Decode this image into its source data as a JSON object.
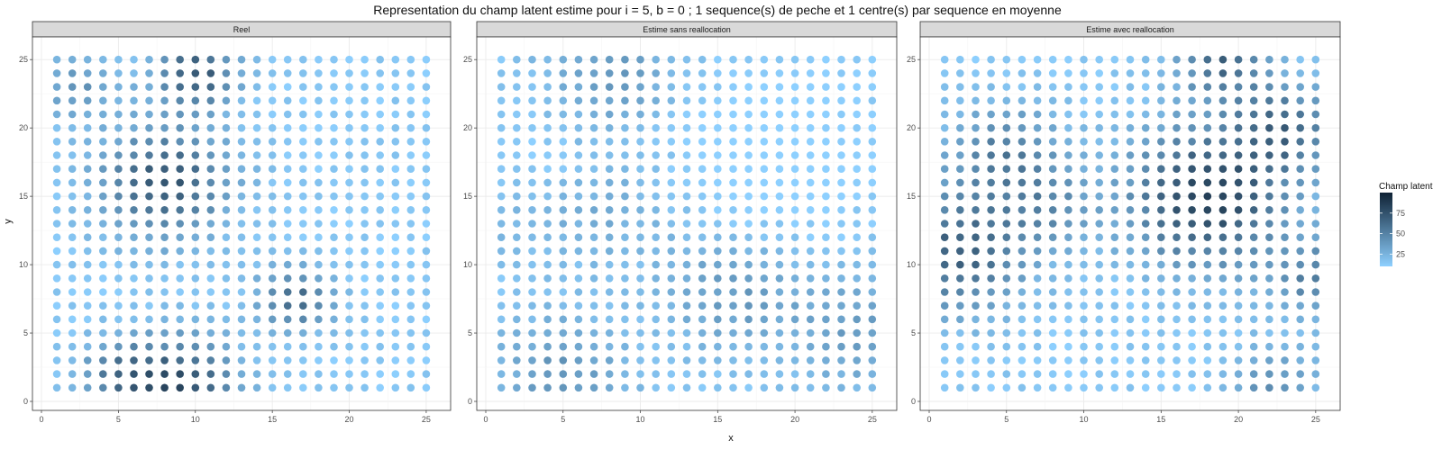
{
  "chart_data": {
    "type": "scatter",
    "title": "Representation du champ latent estime pour i = 5, b = 0 ; 1 sequence(s) de peche et 1 centre(s) par sequence en moyenne",
    "xlabel": "x",
    "ylabel": "y",
    "xlim": [
      0,
      26
    ],
    "ylim": [
      0,
      26
    ],
    "x_ticks": [
      0,
      5,
      10,
      15,
      20,
      25
    ],
    "y_ticks": [
      0,
      5,
      10,
      15,
      20,
      25
    ],
    "grid": true,
    "grid_size": 25,
    "legend": {
      "title": "Champ latent",
      "ticks": [
        25,
        50,
        75
      ],
      "low_color": "#8ed0ff",
      "high_color": "#0f2235",
      "range": [
        10,
        100
      ],
      "placement": "right"
    },
    "facets": [
      {
        "label": "Reel",
        "hotspots": [
          {
            "cx": 8,
            "cy": 16,
            "a": 60,
            "s": 2.8
          },
          {
            "cx": 10,
            "cy": 24,
            "a": 60,
            "s": 1.8
          },
          {
            "cx": 9,
            "cy": 1,
            "a": 65,
            "s": 2.5
          },
          {
            "cx": 5,
            "cy": 2,
            "a": 35,
            "s": 1.8
          },
          {
            "cx": 16.5,
            "cy": 7.5,
            "a": 48,
            "s": 1.6
          },
          {
            "cx": 2.5,
            "cy": 23,
            "a": 25,
            "s": 1.8
          }
        ]
      },
      {
        "label": "Estime sans reallocation",
        "hotspots": [
          {
            "cx": 5,
            "cy": 2,
            "a": 26,
            "s": 3.0
          },
          {
            "cx": 8,
            "cy": 24,
            "a": 24,
            "s": 3.0
          },
          {
            "cx": 16,
            "cy": 8,
            "a": 24,
            "s": 3.0
          },
          {
            "cx": 24,
            "cy": 5,
            "a": 22,
            "s": 3.0
          },
          {
            "cx": 8,
            "cy": 14,
            "a": 14,
            "s": 3.0
          },
          {
            "cx": 2,
            "cy": 14,
            "a": 10,
            "s": 2.5
          }
        ],
        "depressions": [
          {
            "cx": 18,
            "cy": 18,
            "a": 12,
            "s": 4.0
          },
          {
            "cx": 3,
            "cy": 17,
            "a": 8,
            "s": 2.5
          }
        ]
      },
      {
        "label": "Estime avec reallocation",
        "hotspots": [
          {
            "cx": 18,
            "cy": 15,
            "a": 72,
            "s": 3.5
          },
          {
            "cx": 19,
            "cy": 25,
            "a": 50,
            "s": 2.0
          },
          {
            "cx": 23,
            "cy": 20,
            "a": 45,
            "s": 2.2
          },
          {
            "cx": 2,
            "cy": 11,
            "a": 55,
            "s": 3.0
          },
          {
            "cx": 5,
            "cy": 18,
            "a": 40,
            "s": 2.5
          },
          {
            "cx": 8,
            "cy": 14,
            "a": 25,
            "s": 2.0
          },
          {
            "cx": 22,
            "cy": 1,
            "a": 30,
            "s": 2.0
          },
          {
            "cx": 25,
            "cy": 9,
            "a": 35,
            "s": 2.0
          }
        ]
      }
    ]
  }
}
